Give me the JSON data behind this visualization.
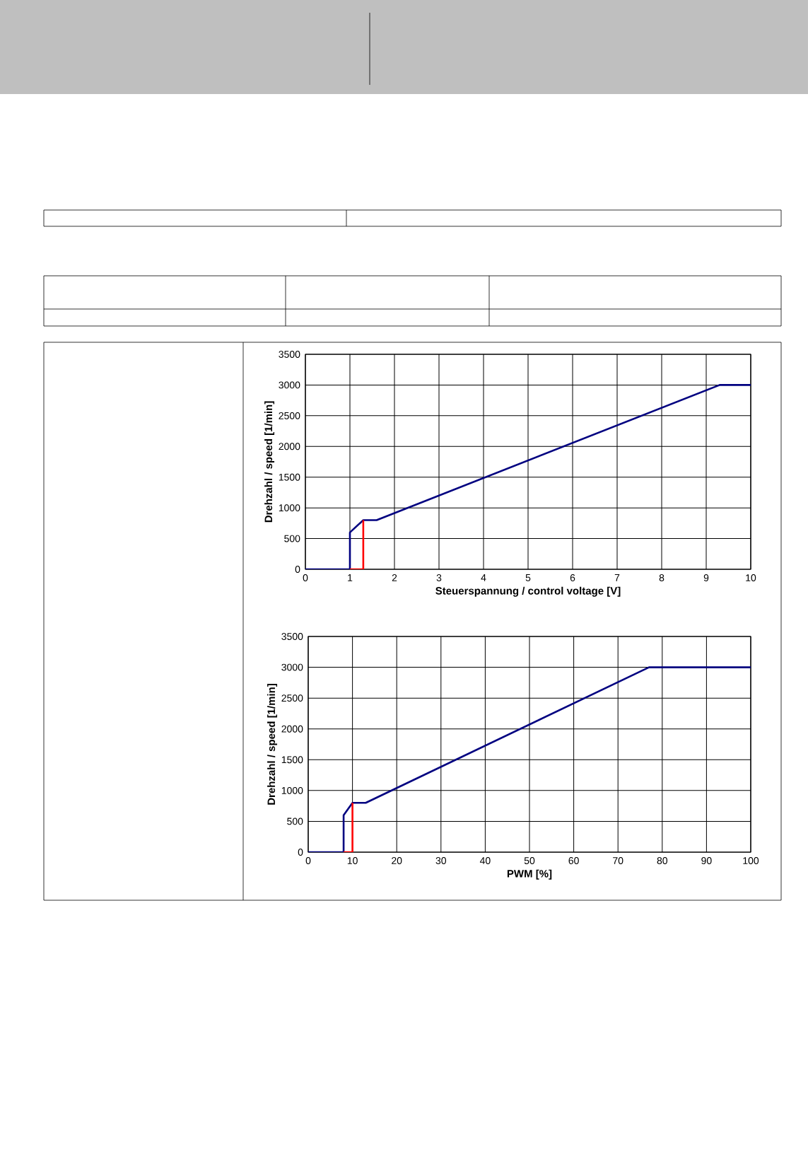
{
  "chart_data": [
    {
      "type": "line",
      "xlabel": "Steuerspannung / control voltage [V]",
      "ylabel": "Drehzahl / speed [1/min]",
      "xlim": [
        0,
        10
      ],
      "ylim": [
        0,
        3500
      ],
      "xticks": [
        0,
        1,
        2,
        3,
        4,
        5,
        6,
        7,
        8,
        9,
        10
      ],
      "yticks": [
        0,
        500,
        1000,
        1500,
        2000,
        2500,
        3000,
        3500
      ],
      "grid": true,
      "marker": "none",
      "line_style": "solid",
      "series": [
        {
          "color": "#000080",
          "x": [
            0,
            1,
            1,
            1.3,
            1.6,
            9.3,
            10
          ],
          "values": [
            0,
            0,
            600,
            800,
            800,
            3000,
            3000
          ]
        },
        {
          "color": "#ff0000",
          "x": [
            1,
            1.3,
            1.3
          ],
          "values": [
            0,
            0,
            800
          ]
        }
      ]
    },
    {
      "type": "line",
      "xlabel": "PWM [%]",
      "ylabel": "Drehzahl / speed [1/min]",
      "xlim": [
        0,
        100
      ],
      "ylim": [
        0,
        3500
      ],
      "xticks": [
        0,
        10,
        20,
        30,
        40,
        50,
        60,
        70,
        80,
        90,
        100
      ],
      "yticks": [
        0,
        500,
        1000,
        1500,
        2000,
        2500,
        3000,
        3500
      ],
      "grid": true,
      "marker": "none",
      "line_style": "solid",
      "series": [
        {
          "color": "#000080",
          "x": [
            0,
            8,
            8,
            10,
            13,
            77,
            100
          ],
          "values": [
            0,
            0,
            600,
            800,
            800,
            3000,
            3000
          ]
        },
        {
          "color": "#ff0000",
          "x": [
            8,
            10,
            10
          ],
          "values": [
            0,
            0,
            800
          ]
        }
      ]
    }
  ]
}
